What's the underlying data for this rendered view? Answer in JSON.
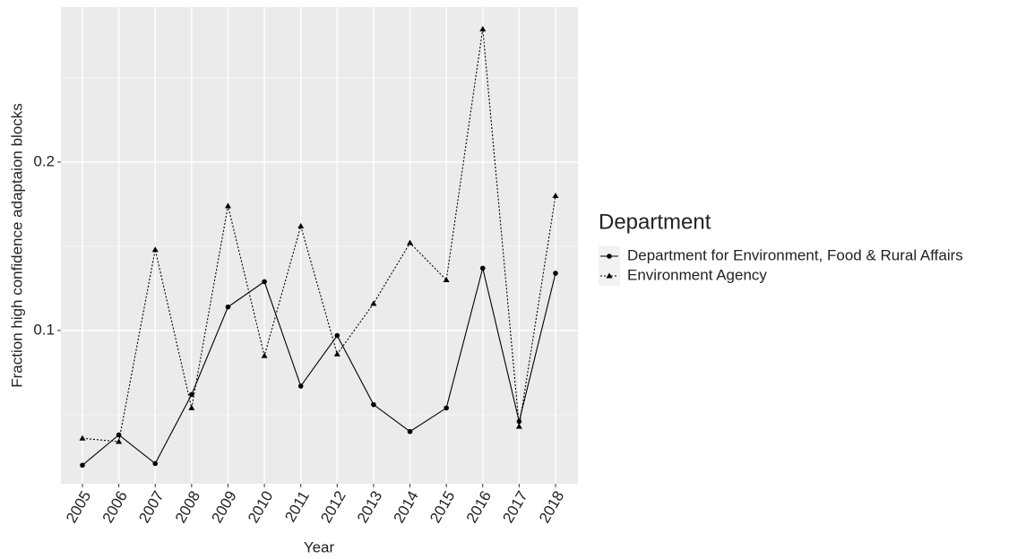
{
  "chart_data": {
    "type": "line",
    "x_label": "Year",
    "y_label": "Fraction high confidence adaptaion blocks",
    "legend_title": "Department",
    "categories": [
      "2005",
      "2006",
      "2007",
      "2008",
      "2009",
      "2010",
      "2011",
      "2012",
      "2013",
      "2014",
      "2015",
      "2016",
      "2017",
      "2018"
    ],
    "series": [
      {
        "name": "Department for Environment, Food & Rural Affairs",
        "color": "#000000",
        "dash": "solid",
        "marker": "circle",
        "values": [
          0.02,
          0.038,
          0.021,
          0.062,
          0.114,
          0.129,
          0.067,
          0.097,
          0.056,
          0.04,
          0.054,
          0.137,
          0.046,
          0.134
        ]
      },
      {
        "name": "Environment Agency",
        "color": "#000000",
        "dash": "dotted",
        "marker": "triangle",
        "values": [
          0.036,
          0.034,
          0.148,
          0.054,
          0.174,
          0.085,
          0.162,
          0.086,
          0.116,
          0.152,
          0.13,
          0.279,
          0.043,
          0.18
        ]
      }
    ],
    "ylim": [
      0.009,
      0.292
    ],
    "yticks": [
      0.1,
      0.2
    ],
    "minor_yticks": [
      0.05,
      0.15,
      0.25
    ],
    "grid": true,
    "legend": "right"
  }
}
